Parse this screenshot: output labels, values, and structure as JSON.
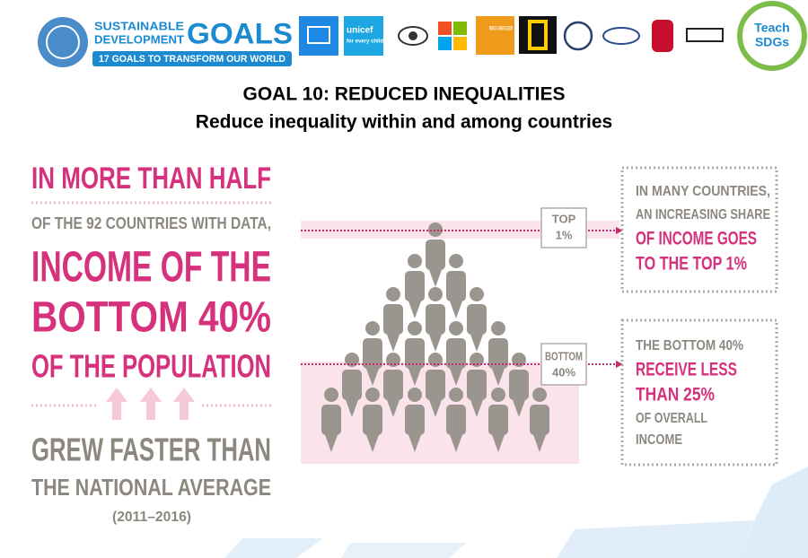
{
  "header": {
    "sdg_logo": {
      "line1": "SUSTAINABLE",
      "line2": "DEVELOPMENT",
      "goals": "GOALS",
      "tagline": "17 GOALS TO TRANSFORM OUR WORLD"
    },
    "partner_logos": {
      "unicef": "unicef",
      "unicef_tagline": "for every child",
      "worlds_largest_lesson": "WORLD'S LARGEST LESSON",
      "teach": "Teach",
      "sdgs": "SDGs"
    }
  },
  "title": "GOAL 10: REDUCED INEQUALITIES",
  "subtitle": "Reduce inequality within and among countries",
  "infographic": {
    "left_lines": [
      "IN MORE THAN HALF",
      "OF THE 92 COUNTRIES WITH DATA,",
      "INCOME OF THE",
      "BOTTOM 40%",
      "OF THE POPULATION",
      "GREW FASTER THAN",
      "THE NATIONAL AVERAGE",
      "(2011–2016)"
    ],
    "top_label": [
      "TOP",
      "1%"
    ],
    "bottom_label": [
      "BOTTOM",
      "40%"
    ],
    "top_box": [
      "IN MANY COUNTRIES,",
      "AN INCREASING SHARE",
      "OF INCOME GOES",
      "TO THE TOP 1%"
    ],
    "bottom_box": [
      "THE BOTTOM 40%",
      "RECEIVE LESS",
      "THAN 25%",
      "OF OVERALL",
      "INCOME"
    ]
  }
}
